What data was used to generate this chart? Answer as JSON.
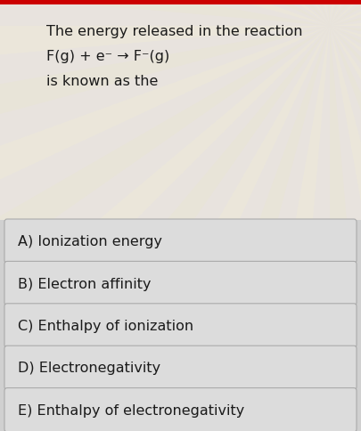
{
  "title_line1": "The energy released in the reaction",
  "title_line2": "F(g) + e⁻ → F⁻(g)",
  "title_line3": "is known as the",
  "options": [
    "A) Ionization energy",
    "B) Electron affinity",
    "C) Enthalpy of ionization",
    "D) Electronegativity",
    "E) Enthalpy of electronegativity"
  ],
  "bg_top_color": "#ede8e5",
  "bg_bottom_color": "#d8d8d8",
  "option_bg": "#e0e0e0",
  "option_border": "#b8b8b8",
  "text_color": "#1a1a1a",
  "title_fontsize": 11.5,
  "option_fontsize": 11.5,
  "red_bar_color": "#cc0000",
  "fig_width": 4.05,
  "fig_height": 4.85,
  "dpi": 100
}
